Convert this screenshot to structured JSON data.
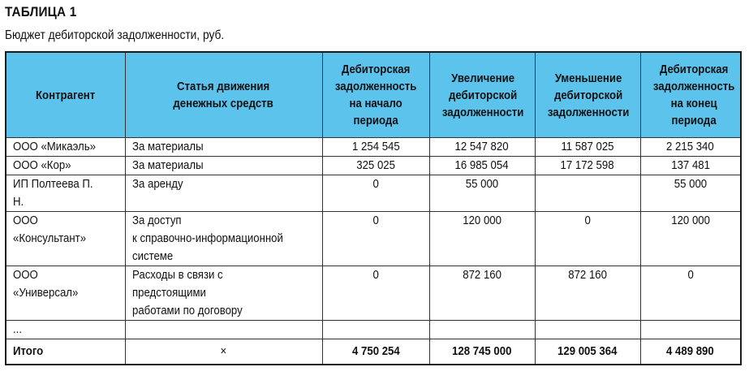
{
  "title": "ТАБЛИЦА 1",
  "subtitle": "Бюджет дебиторской задолженности, руб.",
  "table": {
    "headers": [
      "Контрагент",
      "Статья движения\nденежных средств",
      "Дебиторская\nзадолженность\nна начало\nпериода",
      "Увеличение\nдебиторской\nзадолженности",
      "Уменьшение\nдебиторской\nзадолженности",
      "Дебиторская\nзадолженность\nна конец\nпериода"
    ],
    "rows": [
      {
        "contractor": "ООО «Микаэль»",
        "item": "За материалы",
        "start": "1 254 545",
        "increase": "12 547 820",
        "decrease": "11 587 025",
        "end": "2 215 340"
      },
      {
        "contractor": "ООО «Кор»",
        "item": "За материалы",
        "start": "325 025",
        "increase": "16 985 054",
        "decrease": "17 172 598",
        "end": "137 481"
      },
      {
        "contractor": "ИП Полтеева П. Н.",
        "item": "За аренду",
        "start": "0",
        "increase": "55 000",
        "decrease": "",
        "end": "55 000"
      },
      {
        "contractor": "ООО «Консультант»",
        "item": "За доступ\nк справочно-информационной\nсистеме",
        "start": "0",
        "increase": "120 000",
        "decrease": "0",
        "end": "120 000"
      },
      {
        "contractor": "ООО «Универсал»",
        "item": "Расходы в связи с предстоящими\nработами по договору",
        "start": "0",
        "increase": "872 160",
        "decrease": "872 160",
        "end": "0"
      },
      {
        "contractor": "...",
        "item": "",
        "start": "",
        "increase": "",
        "decrease": "",
        "end": ""
      }
    ],
    "total": {
      "label": "Итого",
      "item": "×",
      "start": "4 750 254",
      "increase": "128 745 000",
      "decrease": "129 005 364",
      "end": "4 489 890"
    },
    "header_color": "#5bc3ec"
  }
}
